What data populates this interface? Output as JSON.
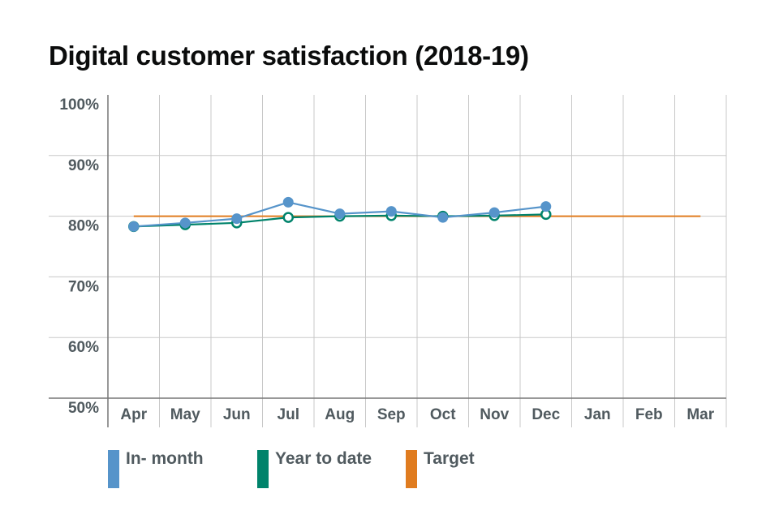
{
  "chart_data": {
    "type": "line",
    "title": "Digital customer satisfaction (2018-19)",
    "categories": [
      "Apr",
      "May",
      "Jun",
      "Jul",
      "Aug",
      "Sep",
      "Oct",
      "Nov",
      "Dec",
      "Jan",
      "Feb",
      "Mar"
    ],
    "y_ticks": [
      "50%",
      "60%",
      "70%",
      "80%",
      "90%",
      "100%"
    ],
    "ylim": [
      50,
      100
    ],
    "grid": true,
    "legend_position": "bottom",
    "series": [
      {
        "name": "In- month",
        "color": "#5694ca",
        "marker": "filled-circle",
        "values": [
          78.3,
          78.9,
          79.6,
          82.3,
          80.4,
          80.8,
          79.8,
          80.6,
          81.6,
          null,
          null,
          null
        ]
      },
      {
        "name": "Year to date",
        "color": "#00836b",
        "marker": "hollow-circle",
        "values": [
          78.3,
          78.6,
          78.9,
          79.8,
          80.0,
          80.1,
          80.0,
          80.1,
          80.3,
          null,
          null,
          null
        ]
      },
      {
        "name": "Target",
        "color": "#e07c1f",
        "marker": "none",
        "values": [
          80,
          80,
          80,
          80,
          80,
          80,
          80,
          80,
          80,
          80,
          80,
          80
        ]
      }
    ]
  }
}
